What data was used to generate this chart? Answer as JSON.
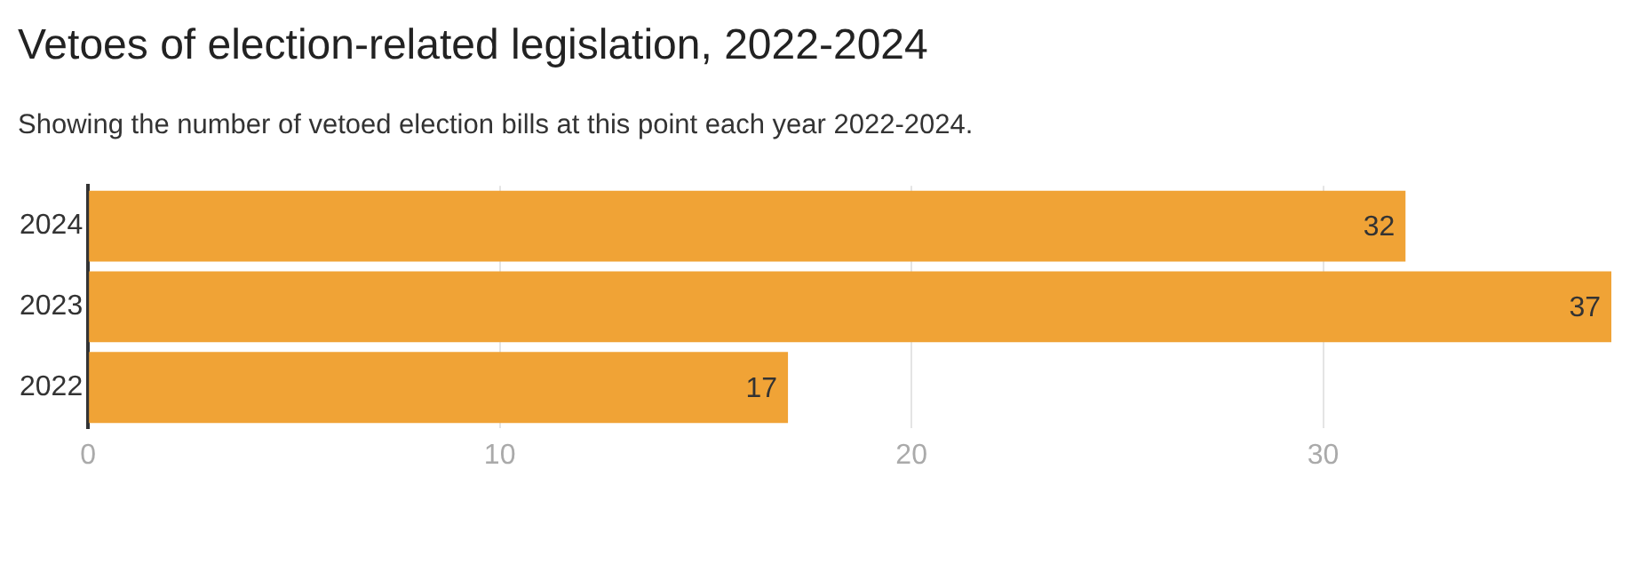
{
  "chart_data": {
    "type": "bar",
    "orientation": "horizontal",
    "title": "Vetoes of election-related legislation, 2022-2024",
    "subtitle": "Showing the number of vetoed election bills at this point each year 2022-2024.",
    "categories": [
      "2024",
      "2023",
      "2022"
    ],
    "values": [
      32,
      37,
      17
    ],
    "color": "#f0a336",
    "xlim": [
      0,
      37
    ],
    "xticks": [
      0,
      10,
      20,
      30
    ],
    "grid": "x",
    "data_labels": true
  }
}
